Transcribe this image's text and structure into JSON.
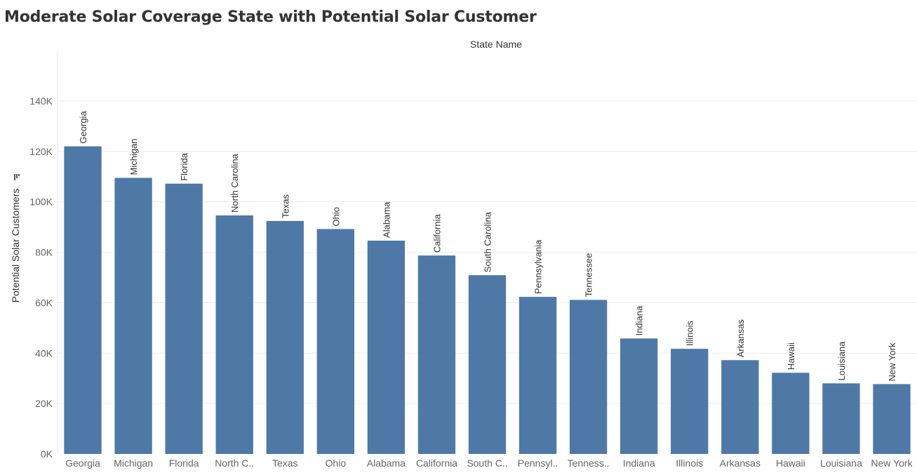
{
  "page": {
    "title": "Moderate Solar Coverage State with Potential Solar Customer"
  },
  "chart_data": {
    "type": "bar",
    "column_header": "State Name",
    "xlabel": "",
    "ylabel": "Potential Solar Customers",
    "ylim": [
      0,
      160000
    ],
    "y_ticks": [
      0,
      20000,
      40000,
      60000,
      80000,
      100000,
      120000,
      140000
    ],
    "y_tick_labels": [
      "0K",
      "20K",
      "40K",
      "60K",
      "80K",
      "100K",
      "120K",
      "140K"
    ],
    "grid": true,
    "bar_color": "#4e79a7",
    "sorted": "descending",
    "categories": [
      "Georgia",
      "Michigan",
      "Florida",
      "North Carolina",
      "Texas",
      "Ohio",
      "Alabama",
      "California",
      "South Carolina",
      "Pennsylvania",
      "Tennessee",
      "Indiana",
      "Illinois",
      "Arkansas",
      "Hawaii",
      "Louisiana",
      "New York"
    ],
    "tick_labels": [
      "Georgia",
      "Michigan",
      "Florida",
      "North C..",
      "Texas",
      "Ohio",
      "Alabama",
      "California",
      "South C..",
      "Pennsyl..",
      "Tenness..",
      "Indiana",
      "Illinois",
      "Arkansas",
      "Hawaii",
      "Louisiana",
      "New York"
    ],
    "values": [
      122000,
      109500,
      107200,
      94600,
      92400,
      89200,
      84600,
      78700,
      70900,
      62300,
      61100,
      45800,
      41700,
      37200,
      32200,
      28000,
      27700
    ]
  }
}
